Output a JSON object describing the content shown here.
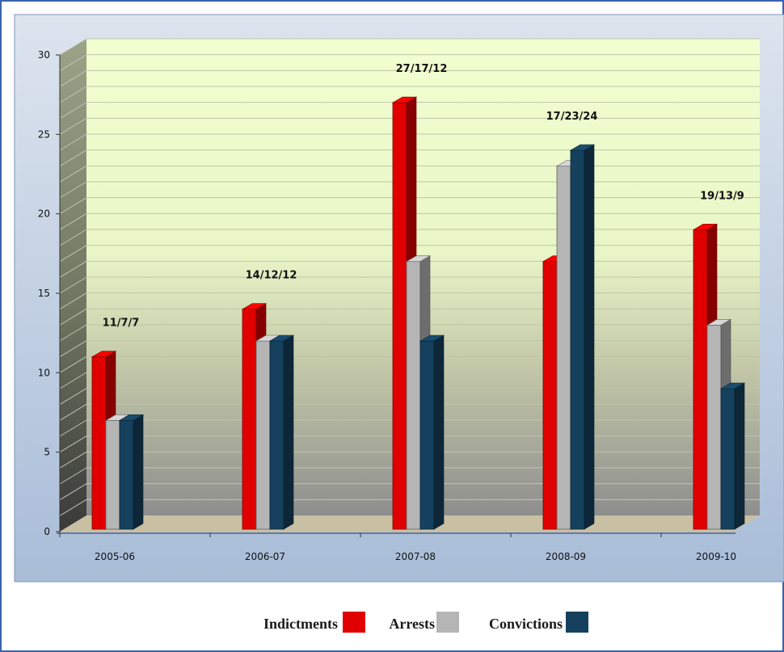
{
  "chart_data": {
    "type": "bar",
    "categories": [
      "2005-06",
      "2006-07",
      "2007-08",
      "2008-09",
      "2009-10"
    ],
    "series": [
      {
        "name": "Indictments",
        "values": [
          11,
          14,
          27,
          17,
          19
        ],
        "color": "#e10000"
      },
      {
        "name": "Arrests",
        "values": [
          7,
          12,
          17,
          23,
          13
        ],
        "color": "#b5b5b5"
      },
      {
        "name": "Convictions",
        "values": [
          7,
          12,
          12,
          24,
          9
        ],
        "color": "#15415e"
      }
    ],
    "data_labels": [
      "11/7/7",
      "14/12/12",
      "27/17/12",
      "17/23/24",
      "19/13/9"
    ],
    "ylim": [
      0,
      30
    ],
    "yticks": [
      0,
      5,
      10,
      15,
      20,
      25,
      30
    ],
    "legend_position": "bottom",
    "grid": true
  }
}
